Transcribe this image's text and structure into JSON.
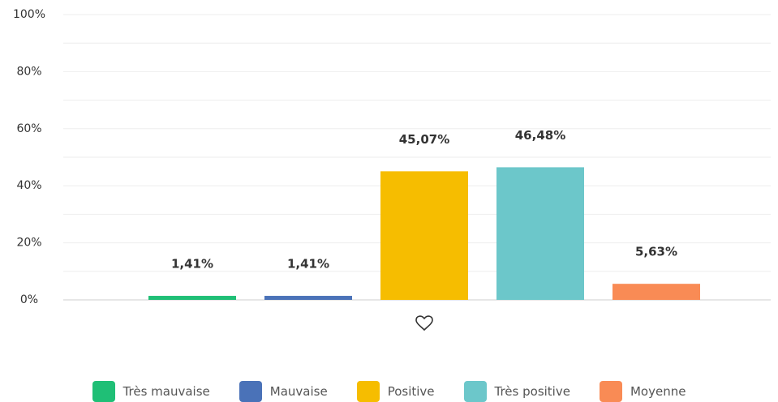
{
  "chart_data": {
    "type": "bar",
    "categories": [
      null
    ],
    "series": [
      {
        "name": "Très mauvaise",
        "color": "#1fbf76",
        "values": [
          1.41
        ],
        "value_labels": [
          "1,41%"
        ]
      },
      {
        "name": "Mauvaise",
        "color": "#4a72b8",
        "values": [
          1.41
        ],
        "value_labels": [
          "1,41%"
        ]
      },
      {
        "name": "Positive",
        "color": "#f6bd00",
        "values": [
          45.07
        ],
        "value_labels": [
          "45,07%"
        ]
      },
      {
        "name": "Très positive",
        "color": "#6cc7ca",
        "values": [
          46.48
        ],
        "value_labels": [
          "46,48%"
        ]
      },
      {
        "name": "Moyenne",
        "color": "#f98b55",
        "values": [
          5.63
        ],
        "value_labels": [
          "5,63%"
        ]
      }
    ],
    "ylim": [
      0,
      100
    ],
    "yticks": [
      {
        "value": 0,
        "label": "0%"
      },
      {
        "value": 20,
        "label": "20%"
      },
      {
        "value": 40,
        "label": "40%"
      },
      {
        "value": 60,
        "label": "60%"
      },
      {
        "value": 80,
        "label": "80%"
      },
      {
        "value": 100,
        "label": "100%"
      }
    ],
    "minor_yticks": [
      10,
      30,
      50,
      70,
      90
    ],
    "grid": true,
    "legend": "bottom"
  }
}
